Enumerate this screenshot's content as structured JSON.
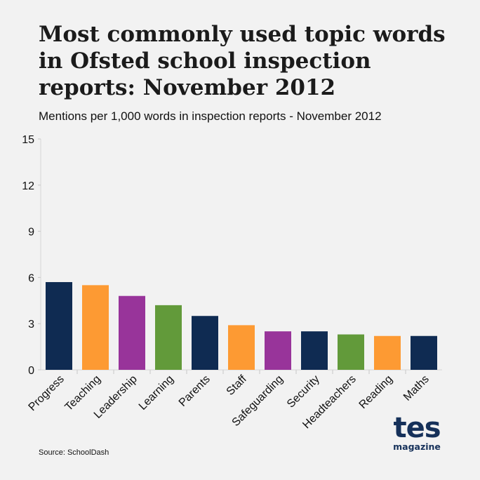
{
  "page": {
    "title": "Most commonly used topic words in Ofsted school inspection reports: November 2012",
    "subtitle": "Mentions per 1,000 words in inspection reports - November 2012",
    "source": "Source: SchoolDash",
    "logo": {
      "main": "tes",
      "sub": "magazine"
    }
  },
  "colors": {
    "navy": "#0f2b52",
    "orange": "#fd9a33",
    "purple": "#98349a",
    "green": "#629a3a",
    "background": "#f2f2f2"
  },
  "chart_data": {
    "type": "bar",
    "title": "Most commonly used topic words in Ofsted school inspection reports: November 2012",
    "subtitle": "Mentions per 1,000 words in inspection reports - November 2012",
    "xlabel": "",
    "ylabel": "",
    "ylim": [
      0,
      15
    ],
    "yticks": [
      0,
      3,
      6,
      9,
      12,
      15
    ],
    "grid": false,
    "legend": "none",
    "categories": [
      "Progress",
      "Teaching",
      "Leadership",
      "Learning",
      "Parents",
      "Staff",
      "Safeguarding",
      "Security",
      "Headteachers",
      "Reading",
      "Maths"
    ],
    "values": [
      5.7,
      5.5,
      4.8,
      4.2,
      3.5,
      2.9,
      2.5,
      2.5,
      2.3,
      2.2,
      2.2
    ],
    "bar_colors": [
      "#0f2b52",
      "#fd9a33",
      "#98349a",
      "#629a3a",
      "#0f2b52",
      "#fd9a33",
      "#98349a",
      "#0f2b52",
      "#629a3a",
      "#fd9a33",
      "#0f2b52"
    ]
  }
}
